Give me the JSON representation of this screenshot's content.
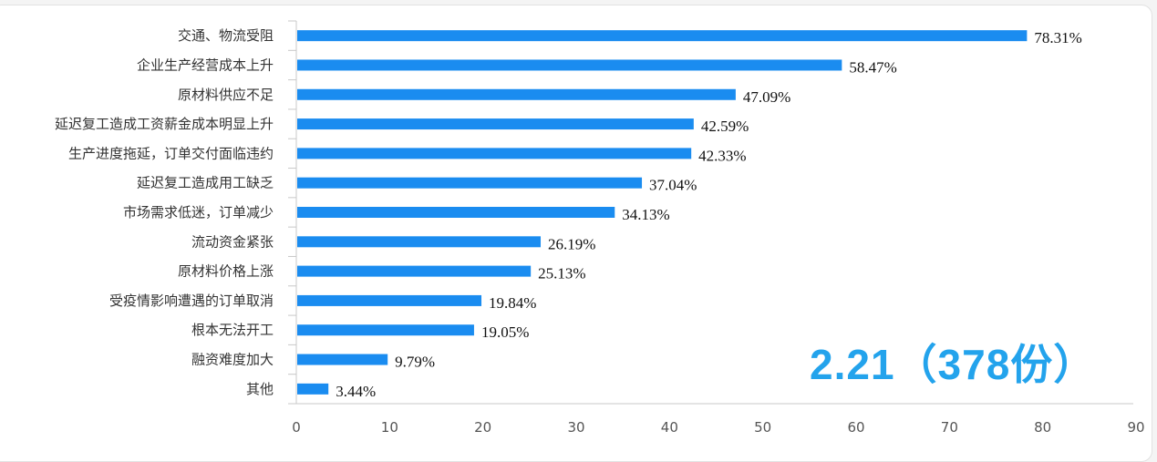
{
  "chart_data": {
    "type": "bar",
    "orientation": "horizontal",
    "categories": [
      "交通、物流受阻",
      "企业生产经营成本上升",
      "原材料供应不足",
      "延迟复工造成工资薪金成本明显上升",
      "生产进度拖延，订单交付面临违约",
      "延迟复工造成用工缺乏",
      "市场需求低迷，订单减少",
      "流动资金紧张",
      "原材料价格上涨",
      "受疫情影响遭遇的订单取消",
      "根本无法开工",
      "融资难度加大",
      "其他"
    ],
    "values": [
      78.31,
      58.47,
      47.09,
      42.59,
      42.33,
      37.04,
      34.13,
      26.19,
      25.13,
      19.84,
      19.05,
      9.79,
      3.44
    ],
    "data_labels": [
      "78.31%",
      "58.47%",
      "47.09%",
      "42.59%",
      "42.33%",
      "37.04%",
      "34.13%",
      "26.19%",
      "25.13%",
      "19.84%",
      "19.05%",
      "9.79%",
      "3.44%"
    ],
    "xlim": [
      0,
      90
    ],
    "xticks": [
      "0",
      "10",
      "20",
      "30",
      "40",
      "50",
      "60",
      "70",
      "80",
      "90"
    ],
    "title": "",
    "xlabel": "",
    "ylabel": "",
    "grid": false,
    "bar_color": "#1a8cf0"
  },
  "annotation": "2.21（378份）",
  "annotation_color": "#23a3ec"
}
